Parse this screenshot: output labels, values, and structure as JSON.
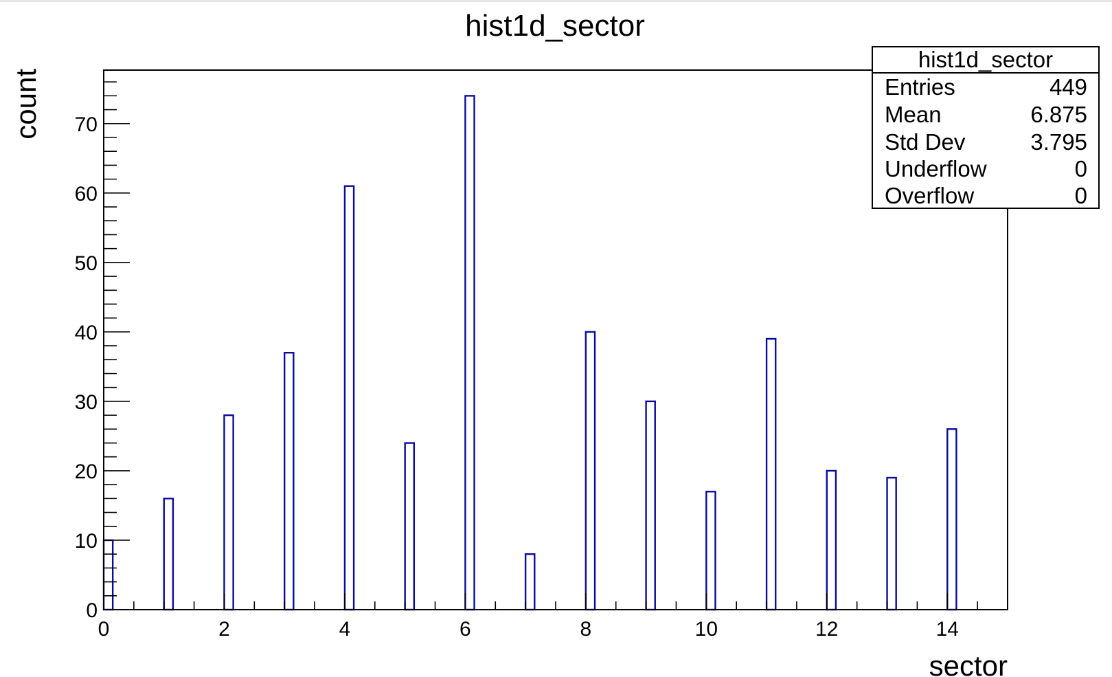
{
  "chart_data": {
    "type": "bar",
    "title": "hist1d_sector",
    "xlabel": "sector",
    "ylabel": "count",
    "xlim": [
      0,
      15
    ],
    "ylim": [
      0,
      77.7
    ],
    "x_ticks": [
      "0",
      "2",
      "4",
      "6",
      "8",
      "10",
      "12",
      "14"
    ],
    "y_ticks": [
      "0",
      "10",
      "20",
      "30",
      "40",
      "50",
      "60",
      "70"
    ],
    "x": [
      0,
      1,
      2,
      3,
      4,
      5,
      6,
      7,
      8,
      9,
      10,
      11,
      12,
      13,
      14
    ],
    "values": [
      10,
      16,
      28,
      37,
      61,
      24,
      74,
      8,
      40,
      30,
      17,
      39,
      20,
      19,
      26
    ],
    "bar_width": 0.15,
    "bar_color": "#0a0aa0",
    "grid": false,
    "stats_box": {
      "title": "hist1d_sector",
      "rows": [
        {
          "label": "Entries",
          "value": "449"
        },
        {
          "label": "Mean",
          "value": "6.875"
        },
        {
          "label": "Std Dev",
          "value": "3.795"
        },
        {
          "label": "Underflow",
          "value": "0"
        },
        {
          "label": "Overflow",
          "value": "0"
        }
      ]
    }
  }
}
